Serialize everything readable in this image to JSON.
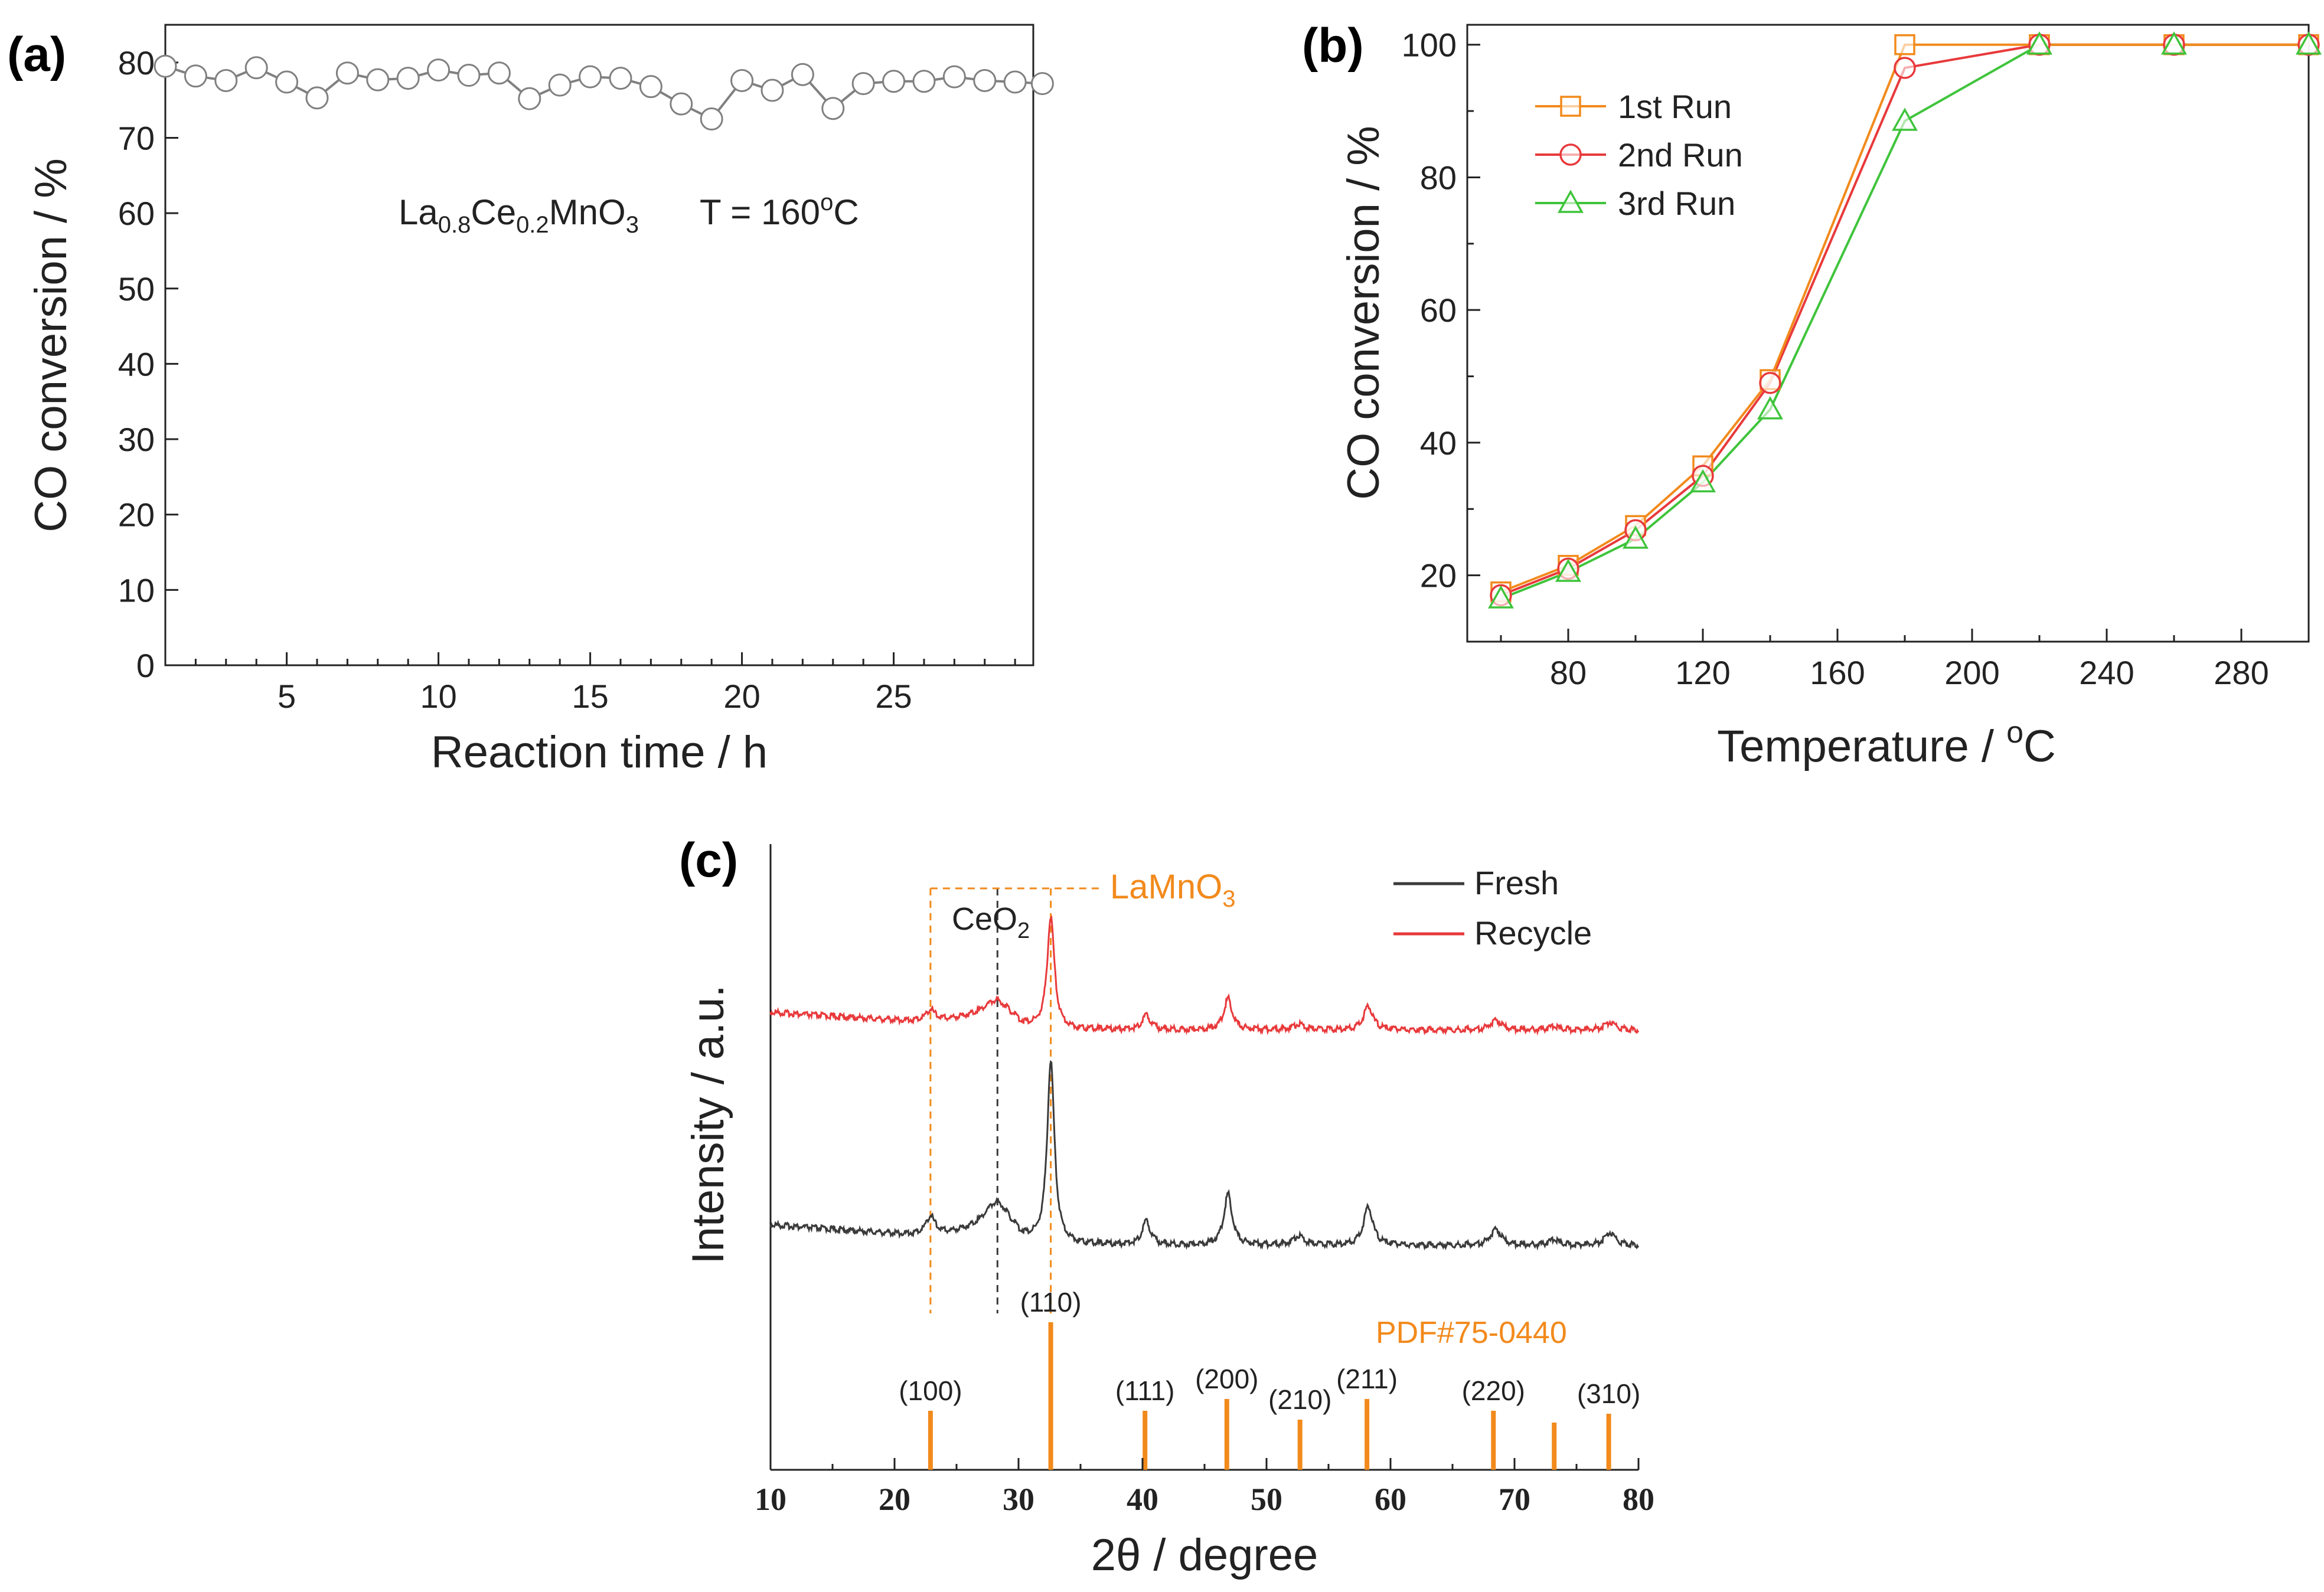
{
  "colors": {
    "orange": "#f28a1c",
    "red": "#e8393b",
    "green": "#3fc43b",
    "gray": "#808080",
    "dark": "#3a3a3a",
    "black": "#000000"
  },
  "chart_data": [
    {
      "panel": "(a)",
      "type": "line",
      "xlabel": "Reaction time / h",
      "ylabel": "CO conversion / %",
      "xlim": [
        1,
        29.6
      ],
      "ylim": [
        0,
        85
      ],
      "xticks": [
        5,
        10,
        15,
        20,
        25
      ],
      "yticks": [
        0,
        10,
        20,
        30,
        40,
        50,
        60,
        70,
        80
      ],
      "annotation": {
        "formula": {
          "base1": "La",
          "sub1": "0.8",
          "base2": "Ce",
          "sub2": "0.2",
          "base3": "MnO",
          "sub3": "3"
        },
        "temp_text": "T = 160",
        "temp_sup": "o",
        "temp_unit": "C"
      },
      "series": [
        {
          "name": "La0.8Ce0.2MnO3",
          "marker": "circle",
          "x": [
            1,
            2,
            3,
            4,
            5,
            6,
            7,
            8,
            9,
            10,
            11,
            12,
            13,
            14,
            15,
            16,
            17,
            18,
            19,
            20,
            21,
            22,
            23,
            24,
            25,
            26,
            27,
            28,
            29,
            29.9
          ],
          "y": [
            79.5,
            78.2,
            77.6,
            79.3,
            77.4,
            75.3,
            78.6,
            77.7,
            77.9,
            79.0,
            78.3,
            78.6,
            75.2,
            77.0,
            78.1,
            77.9,
            76.8,
            74.5,
            72.5,
            77.6,
            76.3,
            78.4,
            73.9,
            77.2,
            77.5,
            77.5,
            78.1,
            77.6,
            77.4,
            77.2
          ]
        }
      ]
    },
    {
      "panel": "(b)",
      "type": "line",
      "xlabel": "Temperature / ",
      "xlabel_sup": "o",
      "xlabel_unit": "C",
      "ylabel": "CO conversion / %",
      "xlim": [
        50,
        300
      ],
      "ylim": [
        10,
        103
      ],
      "xticks": [
        80,
        120,
        160,
        200,
        240,
        280
      ],
      "yticks": [
        20,
        40,
        60,
        80,
        100
      ],
      "x": [
        60,
        80,
        100,
        120,
        140,
        180,
        220,
        260,
        300
      ],
      "series": [
        {
          "name": "1st Run",
          "marker": "square",
          "color": "#f28a1c",
          "values": [
            17.5,
            21.5,
            27.5,
            36.5,
            49.5,
            100,
            100,
            100,
            100
          ]
        },
        {
          "name": "2nd Run",
          "marker": "circle",
          "color": "#e8393b",
          "values": [
            17.0,
            21.0,
            26.8,
            35.0,
            49.0,
            96.5,
            100,
            100,
            100
          ]
        },
        {
          "name": "3rd Run",
          "marker": "triangle",
          "color": "#3fc43b",
          "values": [
            16.5,
            20.5,
            25.5,
            34.0,
            45.0,
            88.5,
            100,
            100,
            100
          ]
        }
      ]
    },
    {
      "panel": "(c)",
      "type": "line",
      "xlabel": "2θ / degree",
      "ylabel": "Intensity / a.u.",
      "xlim": [
        10,
        80
      ],
      "xticks": [
        10,
        20,
        30,
        40,
        50,
        60,
        70,
        80
      ],
      "legend": [
        "Fresh",
        "Recycle"
      ],
      "annotations": {
        "lamno3": {
          "base": "LaMnO",
          "sub": "3"
        },
        "ceo2": {
          "base": "CeO",
          "sub": "2"
        },
        "pdf": "PDF#75-0440"
      },
      "peaks": [
        {
          "center": 22.9,
          "height": 0.1,
          "width": 0.45
        },
        {
          "center": 28.3,
          "height": 0.18,
          "width": 1.3
        },
        {
          "center": 32.6,
          "height": 1.0,
          "width": 0.35
        },
        {
          "center": 40.3,
          "height": 0.13,
          "width": 0.4
        },
        {
          "center": 46.9,
          "height": 0.28,
          "width": 0.4
        },
        {
          "center": 52.6,
          "height": 0.05,
          "width": 0.5
        },
        {
          "center": 58.2,
          "height": 0.21,
          "width": 0.45
        },
        {
          "center": 68.5,
          "height": 0.09,
          "width": 0.5
        },
        {
          "center": 73.2,
          "height": 0.03,
          "width": 0.5
        },
        {
          "center": 77.7,
          "height": 0.07,
          "width": 0.5
        }
      ],
      "reference_lines": [
        {
          "x": 22.9,
          "height": 0.2,
          "label": "(100)"
        },
        {
          "x": 32.6,
          "height": 0.5,
          "label": "(110)"
        },
        {
          "x": 40.2,
          "height": 0.2,
          "label": "(111)"
        },
        {
          "x": 46.8,
          "height": 0.24,
          "label": "(200)"
        },
        {
          "x": 52.7,
          "height": 0.17,
          "label": "(210)"
        },
        {
          "x": 58.1,
          "height": 0.24,
          "label": "(211)"
        },
        {
          "x": 68.3,
          "height": 0.2,
          "label": "(220)"
        },
        {
          "x": 73.2,
          "height": 0.16,
          "label": ""
        },
        {
          "x": 77.6,
          "height": 0.19,
          "label": "(310)"
        }
      ],
      "guide_lines": [
        22.9,
        28.3,
        32.6
      ]
    }
  ]
}
